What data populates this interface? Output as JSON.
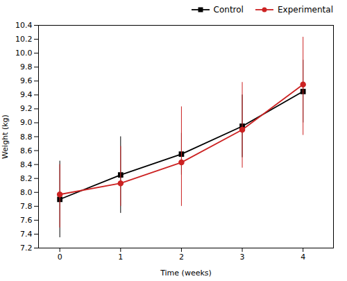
{
  "chart_data": {
    "type": "line",
    "x": [
      0,
      1,
      2,
      3,
      4
    ],
    "xlabel": "Time (weeks)",
    "ylabel": "Weight (kg)",
    "xlim": [
      -0.35,
      4.5
    ],
    "xticks": [
      0,
      1,
      2,
      3,
      4
    ],
    "ylim": [
      7.2,
      10.4
    ],
    "yticks": [
      7.2,
      7.4,
      7.6,
      7.8,
      {
        "value": 8,
        "label": "8.0"
      },
      8.2,
      8.4,
      8.6,
      8.8,
      {
        "value": 9,
        "label": "9.0"
      },
      9.2,
      9.4,
      9.6,
      9.8,
      {
        "value": 10,
        "label": "10.0"
      },
      10.2,
      10.4
    ],
    "grid": false,
    "legend": "upper right",
    "series": [
      {
        "name": "Control",
        "color": "#000000",
        "marker": "square",
        "line_style": "solid",
        "values": [
          7.9,
          8.25,
          8.55,
          8.95,
          9.45
        ],
        "error": [
          0.55,
          0.55,
          0.3,
          0.45,
          0.45
        ]
      },
      {
        "name": "Experimental",
        "color": "#cc2222",
        "marker": "circle",
        "line_style": "solid",
        "values": [
          7.97,
          8.13,
          8.43,
          8.9,
          9.55
        ],
        "error_lower": [
          0.48,
          0.33,
          0.63,
          0.55,
          0.73
        ],
        "error_upper": [
          0.43,
          0.53,
          0.8,
          0.68,
          0.68
        ]
      }
    ]
  }
}
